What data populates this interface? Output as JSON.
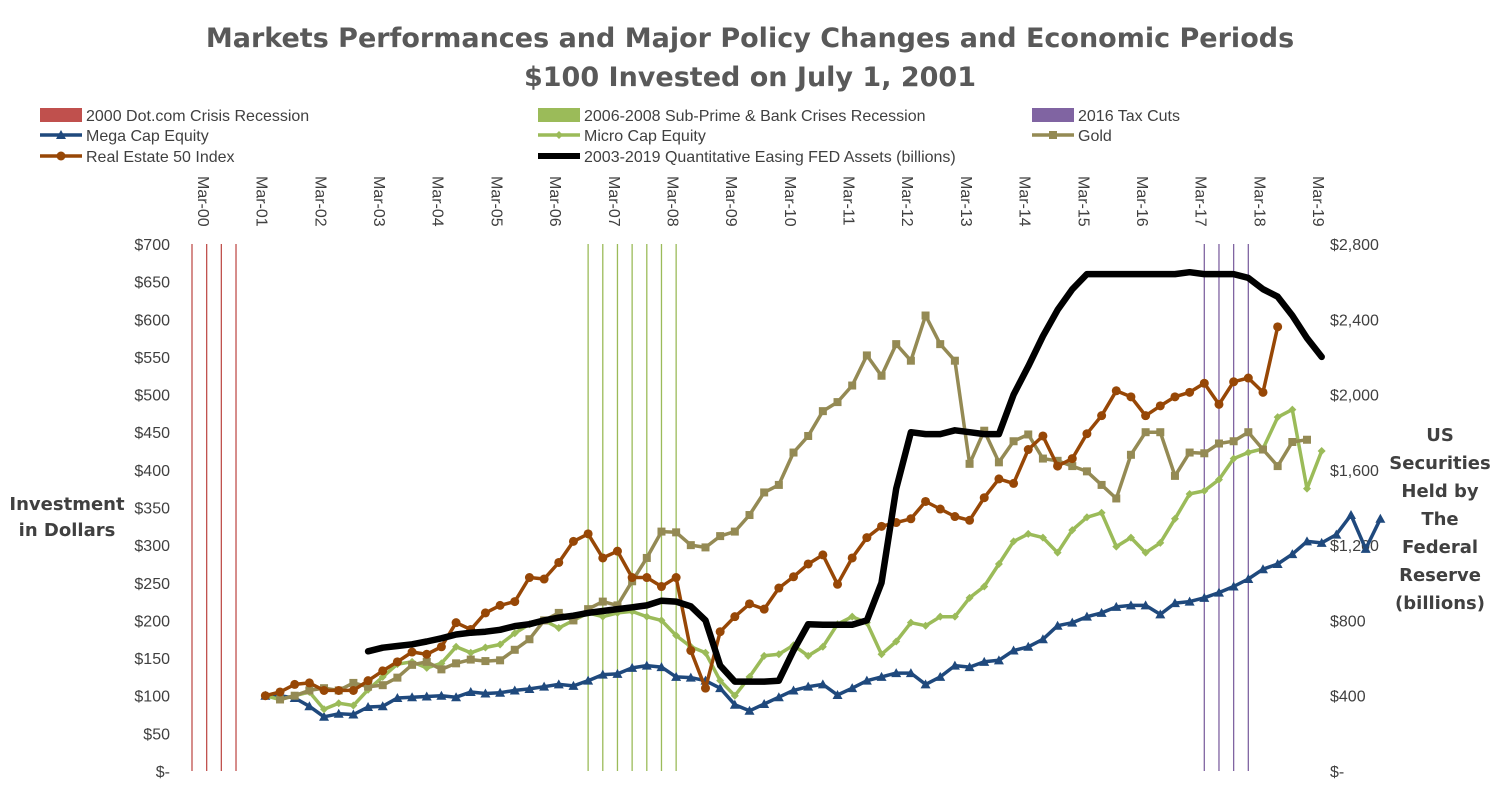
{
  "chart_data": {
    "type": "line",
    "title": "Markets Performances and Major Policy Changes and Economic Periods",
    "subtitle": "$100 Invested on July 1, 2001",
    "ylabel": "Investment in Dollars",
    "ylabel_lines": [
      "Investment",
      "in Dollars"
    ],
    "y2label": "US Securities Held by The Federal Reserve (billions)",
    "y2label_lines": [
      "US",
      "Securities",
      "Held by",
      "The",
      "Federal",
      "Reserve",
      "(billions)"
    ],
    "ylim": [
      0,
      700
    ],
    "y2lim": [
      0,
      2800
    ],
    "xlim": [
      "2000-03",
      "2019-03"
    ],
    "x_ticks": [
      "Mar-00",
      "Mar-01",
      "Mar-02",
      "Mar-03",
      "Mar-04",
      "Mar-05",
      "Mar-06",
      "Mar-07",
      "Mar-08",
      "Mar-09",
      "Mar-10",
      "Mar-11",
      "Mar-12",
      "Mar-13",
      "Mar-14",
      "Mar-15",
      "Mar-16",
      "Mar-17",
      "Mar-18",
      "Mar-19"
    ],
    "y_ticks": [
      "$-",
      "$50",
      "$100",
      "$150",
      "$200",
      "$250",
      "$300",
      "$350",
      "$400",
      "$450",
      "$500",
      "$550",
      "$600",
      "$650",
      "$700"
    ],
    "y2_ticks": [
      "$-",
      "$400",
      "$800",
      "$1,200",
      "$1,600",
      "$2,000",
      "$2,400",
      "$2,800"
    ],
    "grid": false,
    "legend_position": "top",
    "recession_bands": [
      {
        "name": "2000 Dot.com Crisis Recession",
        "color": "#C0504D",
        "dates": [
          "2000-03",
          "2000-06",
          "2000-09",
          "2000-12"
        ]
      },
      {
        "name": "2006-2008 Sub-Prime & Bank Crises Recession",
        "color": "#9BBB59",
        "dates": [
          "2006-12",
          "2007-03",
          "2007-06",
          "2007-09",
          "2007-12",
          "2008-03",
          "2008-06"
        ]
      },
      {
        "name": "2016 Tax Cuts",
        "color": "#8064A2",
        "dates": [
          "2017-06",
          "2017-09",
          "2017-12",
          "2018-03"
        ]
      }
    ],
    "series": [
      {
        "name": "Mega Cap Equity",
        "color": "#1F497D",
        "marker": "triangle",
        "axis": "left",
        "start": "2001-06",
        "values": [
          100,
          100,
          97,
          86,
          72,
          76,
          75,
          85,
          86,
          97,
          98,
          99,
          100,
          98,
          105,
          103,
          104,
          107,
          109,
          112,
          115,
          113,
          120,
          128,
          129,
          137,
          140,
          138,
          125,
          124,
          120,
          110,
          88,
          80,
          89,
          98,
          107,
          112,
          115,
          101,
          110,
          120,
          125,
          130,
          130,
          115,
          125,
          140,
          138,
          145,
          147,
          160,
          165,
          175,
          193,
          197,
          205,
          210,
          218,
          220,
          220,
          208,
          223,
          225,
          230,
          237,
          245,
          255,
          268,
          275,
          288,
          305,
          303,
          314,
          340,
          295,
          335
        ]
      },
      {
        "name": "Micro Cap Equity",
        "color": "#9BBB59",
        "marker": "diamond",
        "axis": "left",
        "start": "2001-06",
        "values": [
          100,
          95,
          100,
          105,
          82,
          90,
          87,
          108,
          125,
          142,
          145,
          137,
          143,
          165,
          157,
          164,
          168,
          183,
          195,
          200,
          190,
          200,
          210,
          205,
          210,
          212,
          205,
          200,
          180,
          165,
          157,
          120,
          100,
          125,
          153,
          155,
          167,
          153,
          165,
          195,
          205,
          197,
          155,
          172,
          197,
          193,
          205,
          205,
          230,
          245,
          275,
          305,
          315,
          310,
          290,
          320,
          337,
          343,
          298,
          310,
          290,
          303,
          335,
          368,
          372,
          387,
          415,
          423,
          428,
          470,
          480,
          375,
          425
        ]
      },
      {
        "name": "Gold",
        "color": "#948A54",
        "marker": "square",
        "axis": "left",
        "start": "2001-09",
        "values": [
          95,
          100,
          107,
          110,
          107,
          117,
          112,
          114,
          124,
          141,
          145,
          135,
          143,
          148,
          146,
          147,
          161,
          175,
          200,
          210,
          200,
          215,
          225,
          220,
          252,
          283,
          318,
          317,
          300,
          297,
          312,
          318,
          340,
          370,
          380,
          423,
          445,
          478,
          490,
          512,
          552,
          525,
          567,
          545,
          605,
          567,
          545,
          408,
          452,
          410,
          438,
          447,
          415,
          412,
          405,
          398,
          380,
          362,
          420,
          450,
          450,
          392,
          423,
          422,
          435,
          438,
          450,
          427,
          405,
          437,
          440
        ]
      },
      {
        "name": "Real Estate 50 Index",
        "color": "#974706",
        "marker": "circle",
        "axis": "left",
        "start": "2001-06",
        "values": [
          100,
          105,
          115,
          117,
          107,
          107,
          107,
          120,
          133,
          145,
          158,
          155,
          165,
          197,
          188,
          210,
          220,
          225,
          257,
          255,
          277,
          305,
          315,
          283,
          292,
          257,
          257,
          245,
          257,
          160,
          110,
          185,
          205,
          222,
          215,
          243,
          258,
          275,
          287,
          248,
          283,
          310,
          325,
          330,
          335,
          358,
          348,
          338,
          333,
          363,
          388,
          382,
          427,
          445,
          405,
          415,
          448,
          472,
          505,
          497,
          472,
          485,
          497,
          503,
          515,
          487,
          517,
          522,
          503,
          590
        ]
      },
      {
        "name": "2003-2019 Quantitative Easing FED Assets (billions)",
        "color": "#000000",
        "marker": "none",
        "axis": "right",
        "start": "2003-03",
        "values": [
          636,
          655,
          664,
          673,
          688,
          705,
          725,
          735,
          740,
          750,
          770,
          780,
          800,
          815,
          825,
          840,
          850,
          860,
          870,
          880,
          905,
          900,
          875,
          800,
          560,
          475,
          475,
          475,
          480,
          640,
          780,
          777,
          777,
          777,
          800,
          1000,
          1500,
          1800,
          1790,
          1790,
          1810,
          1800,
          1790,
          1790,
          2000,
          2150,
          2310,
          2450,
          2560,
          2640,
          2640,
          2640,
          2640,
          2640,
          2640,
          2640,
          2650,
          2640,
          2640,
          2640,
          2620,
          2560,
          2520,
          2420,
          2300,
          2200
        ]
      }
    ]
  }
}
